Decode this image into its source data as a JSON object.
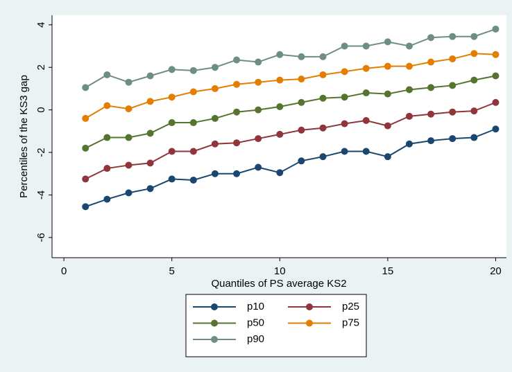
{
  "chart_data": {
    "type": "line",
    "x_label": "Quantiles of PS average KS2",
    "y_label": "Percentiles of the KS3 gap",
    "x": [
      1,
      2,
      3,
      4,
      5,
      6,
      7,
      8,
      9,
      10,
      11,
      12,
      13,
      14,
      15,
      16,
      17,
      18,
      19,
      20
    ],
    "series": [
      {
        "name": "p10",
        "color": "#1a476f",
        "values": [
          -4.55,
          -4.2,
          -3.9,
          -3.7,
          -3.25,
          -3.3,
          -3.0,
          -3.0,
          -2.7,
          -2.95,
          -2.4,
          -2.2,
          -1.95,
          -1.95,
          -2.2,
          -1.6,
          -1.45,
          -1.35,
          -1.3,
          -0.9
        ]
      },
      {
        "name": "p25",
        "color": "#90353b",
        "values": [
          -3.25,
          -2.75,
          -2.6,
          -2.5,
          -1.95,
          -1.95,
          -1.6,
          -1.55,
          -1.35,
          -1.15,
          -0.95,
          -0.85,
          -0.65,
          -0.5,
          -0.75,
          -0.3,
          -0.2,
          -0.1,
          -0.05,
          0.35
        ]
      },
      {
        "name": "p50",
        "color": "#55752f",
        "values": [
          -1.8,
          -1.3,
          -1.3,
          -1.1,
          -0.6,
          -0.6,
          -0.4,
          -0.1,
          0,
          0.15,
          0.35,
          0.55,
          0.6,
          0.8,
          0.75,
          0.95,
          1.05,
          1.15,
          1.4,
          1.6
        ]
      },
      {
        "name": "p75",
        "color": "#e37e00",
        "values": [
          -0.4,
          0.2,
          0.05,
          0.4,
          0.6,
          0.85,
          1.0,
          1.2,
          1.3,
          1.4,
          1.45,
          1.65,
          1.8,
          1.95,
          2.05,
          2.05,
          2.25,
          2.4,
          2.65,
          2.6
        ]
      },
      {
        "name": "p90",
        "color": "#6e8e84",
        "values": [
          1.05,
          1.65,
          1.3,
          1.6,
          1.9,
          1.85,
          2.0,
          2.35,
          2.25,
          2.6,
          2.5,
          2.5,
          3.0,
          3.0,
          3.2,
          3.0,
          3.4,
          3.45,
          3.45,
          3.8
        ]
      }
    ],
    "xlim": [
      -0.55,
      20.5
    ],
    "xticks": [
      0,
      5,
      10,
      15,
      20
    ],
    "ylim": [
      -6.95,
      4.45
    ],
    "yticks": [
      -6,
      -4,
      -2,
      0,
      2,
      4
    ],
    "legend": "bottom"
  }
}
